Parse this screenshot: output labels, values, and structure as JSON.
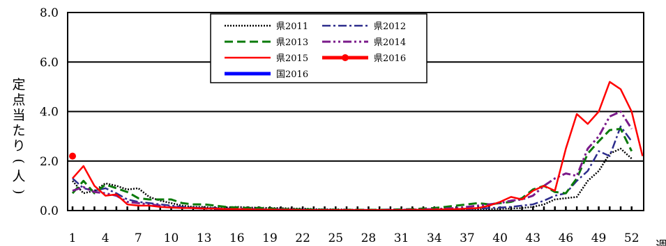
{
  "chart_data": {
    "type": "line",
    "title": "",
    "xlabel": "週",
    "ylabel": "定点当たり(人)",
    "ylim": [
      0,
      8
    ],
    "yticks": [
      "0.0",
      "2.0",
      "4.0",
      "6.0",
      "8.0"
    ],
    "xtick_labels": [
      "1",
      "4",
      "7",
      "10",
      "13",
      "16",
      "19",
      "22",
      "25",
      "28",
      "31",
      "34",
      "37",
      "40",
      "43",
      "46",
      "49",
      "52"
    ],
    "grid": true,
    "legend_position": "top-center",
    "weeks": [
      1,
      2,
      3,
      4,
      5,
      6,
      7,
      8,
      9,
      10,
      11,
      12,
      13,
      14,
      15,
      16,
      17,
      18,
      19,
      20,
      21,
      22,
      23,
      24,
      25,
      26,
      27,
      28,
      29,
      30,
      31,
      32,
      33,
      34,
      35,
      36,
      37,
      38,
      39,
      40,
      41,
      42,
      43,
      44,
      45,
      46,
      47,
      48,
      49,
      50,
      51,
      52,
      53
    ],
    "series": [
      {
        "name": "県2011",
        "color": "#000000",
        "dash": "dotted",
        "width": 2.5,
        "values": [
          1.2,
          0.7,
          0.8,
          1.1,
          1.0,
          0.85,
          0.9,
          0.55,
          0.4,
          0.3,
          0.2,
          0.15,
          0.15,
          0.1,
          0.12,
          0.15,
          0.12,
          0.12,
          0.1,
          0.1,
          0.08,
          0.08,
          0.06,
          0.05,
          0.05,
          0.04,
          0.03,
          0.02,
          0.02,
          0.02,
          0.02,
          0.02,
          0.03,
          0.03,
          0.03,
          0.04,
          0.05,
          0.05,
          0.06,
          0.07,
          0.08,
          0.1,
          0.15,
          0.25,
          0.45,
          0.5,
          0.55,
          1.2,
          1.6,
          2.3,
          2.5,
          2.1,
          null
        ]
      },
      {
        "name": "県2012",
        "color": "#2c2c8c",
        "dash": "dashdot",
        "width": 2.5,
        "values": [
          1.3,
          0.9,
          0.8,
          0.9,
          0.7,
          0.45,
          0.35,
          0.3,
          0.25,
          0.2,
          0.15,
          0.12,
          0.1,
          0.1,
          0.08,
          0.08,
          0.07,
          0.06,
          0.05,
          0.05,
          0.04,
          0.03,
          0.03,
          0.03,
          0.02,
          0.02,
          0.02,
          0.02,
          0.02,
          0.02,
          0.02,
          0.03,
          0.03,
          0.03,
          0.04,
          0.05,
          0.06,
          0.08,
          0.1,
          0.12,
          0.15,
          0.2,
          0.25,
          0.4,
          0.6,
          0.7,
          1.2,
          1.6,
          2.4,
          2.2,
          3.4,
          2.8,
          null
        ]
      },
      {
        "name": "県2013",
        "color": "#0a7a0a",
        "dash": "dashed",
        "width": 3,
        "values": [
          0.7,
          1.2,
          0.7,
          1.05,
          0.9,
          0.75,
          0.5,
          0.45,
          0.45,
          0.45,
          0.3,
          0.25,
          0.25,
          0.2,
          0.15,
          0.12,
          0.1,
          0.1,
          0.08,
          0.06,
          0.05,
          0.05,
          0.04,
          0.04,
          0.03,
          0.03,
          0.03,
          0.03,
          0.03,
          0.04,
          0.05,
          0.06,
          0.08,
          0.1,
          0.15,
          0.2,
          0.25,
          0.3,
          0.25,
          0.3,
          0.35,
          0.5,
          0.85,
          1.0,
          0.75,
          0.7,
          1.3,
          2.3,
          2.8,
          3.25,
          3.3,
          2.4,
          null
        ]
      },
      {
        "name": "県2014",
        "color": "#7a1a8a",
        "dash": "dashdotdot",
        "width": 3,
        "values": [
          0.8,
          0.95,
          0.75,
          0.7,
          0.6,
          0.35,
          0.3,
          0.25,
          0.2,
          0.15,
          0.12,
          0.1,
          0.08,
          0.07,
          0.06,
          0.05,
          0.05,
          0.04,
          0.03,
          0.03,
          0.03,
          0.02,
          0.02,
          0.02,
          0.02,
          0.02,
          0.02,
          0.02,
          0.02,
          0.03,
          0.03,
          0.04,
          0.05,
          0.06,
          0.08,
          0.1,
          0.15,
          0.2,
          0.25,
          0.3,
          0.4,
          0.45,
          0.6,
          1.0,
          1.3,
          1.5,
          1.4,
          2.5,
          3.0,
          3.8,
          4.0,
          3.3,
          null
        ]
      },
      {
        "name": "県2015",
        "color": "#ff0000",
        "dash": "solid",
        "width": 2.5,
        "values": [
          1.3,
          1.8,
          1.0,
          0.6,
          0.65,
          0.25,
          0.2,
          0.2,
          0.15,
          0.12,
          0.1,
          0.1,
          0.08,
          0.08,
          0.06,
          0.06,
          0.05,
          0.04,
          0.04,
          0.03,
          0.03,
          0.02,
          0.02,
          0.02,
          0.02,
          0.02,
          0.02,
          0.02,
          0.02,
          0.02,
          0.02,
          0.03,
          0.03,
          0.04,
          0.05,
          0.06,
          0.08,
          0.1,
          0.2,
          0.35,
          0.55,
          0.45,
          0.8,
          1.0,
          0.8,
          2.5,
          3.9,
          3.5,
          4.0,
          5.2,
          4.9,
          4.0,
          2.2
        ]
      },
      {
        "name": "県2016",
        "color": "#ff0000",
        "dash": "solid",
        "width": 5,
        "marker": true,
        "values": [
          2.2
        ]
      },
      {
        "name": "国2016",
        "color": "#0000ff",
        "dash": "solid",
        "width": 5,
        "values": []
      }
    ]
  }
}
